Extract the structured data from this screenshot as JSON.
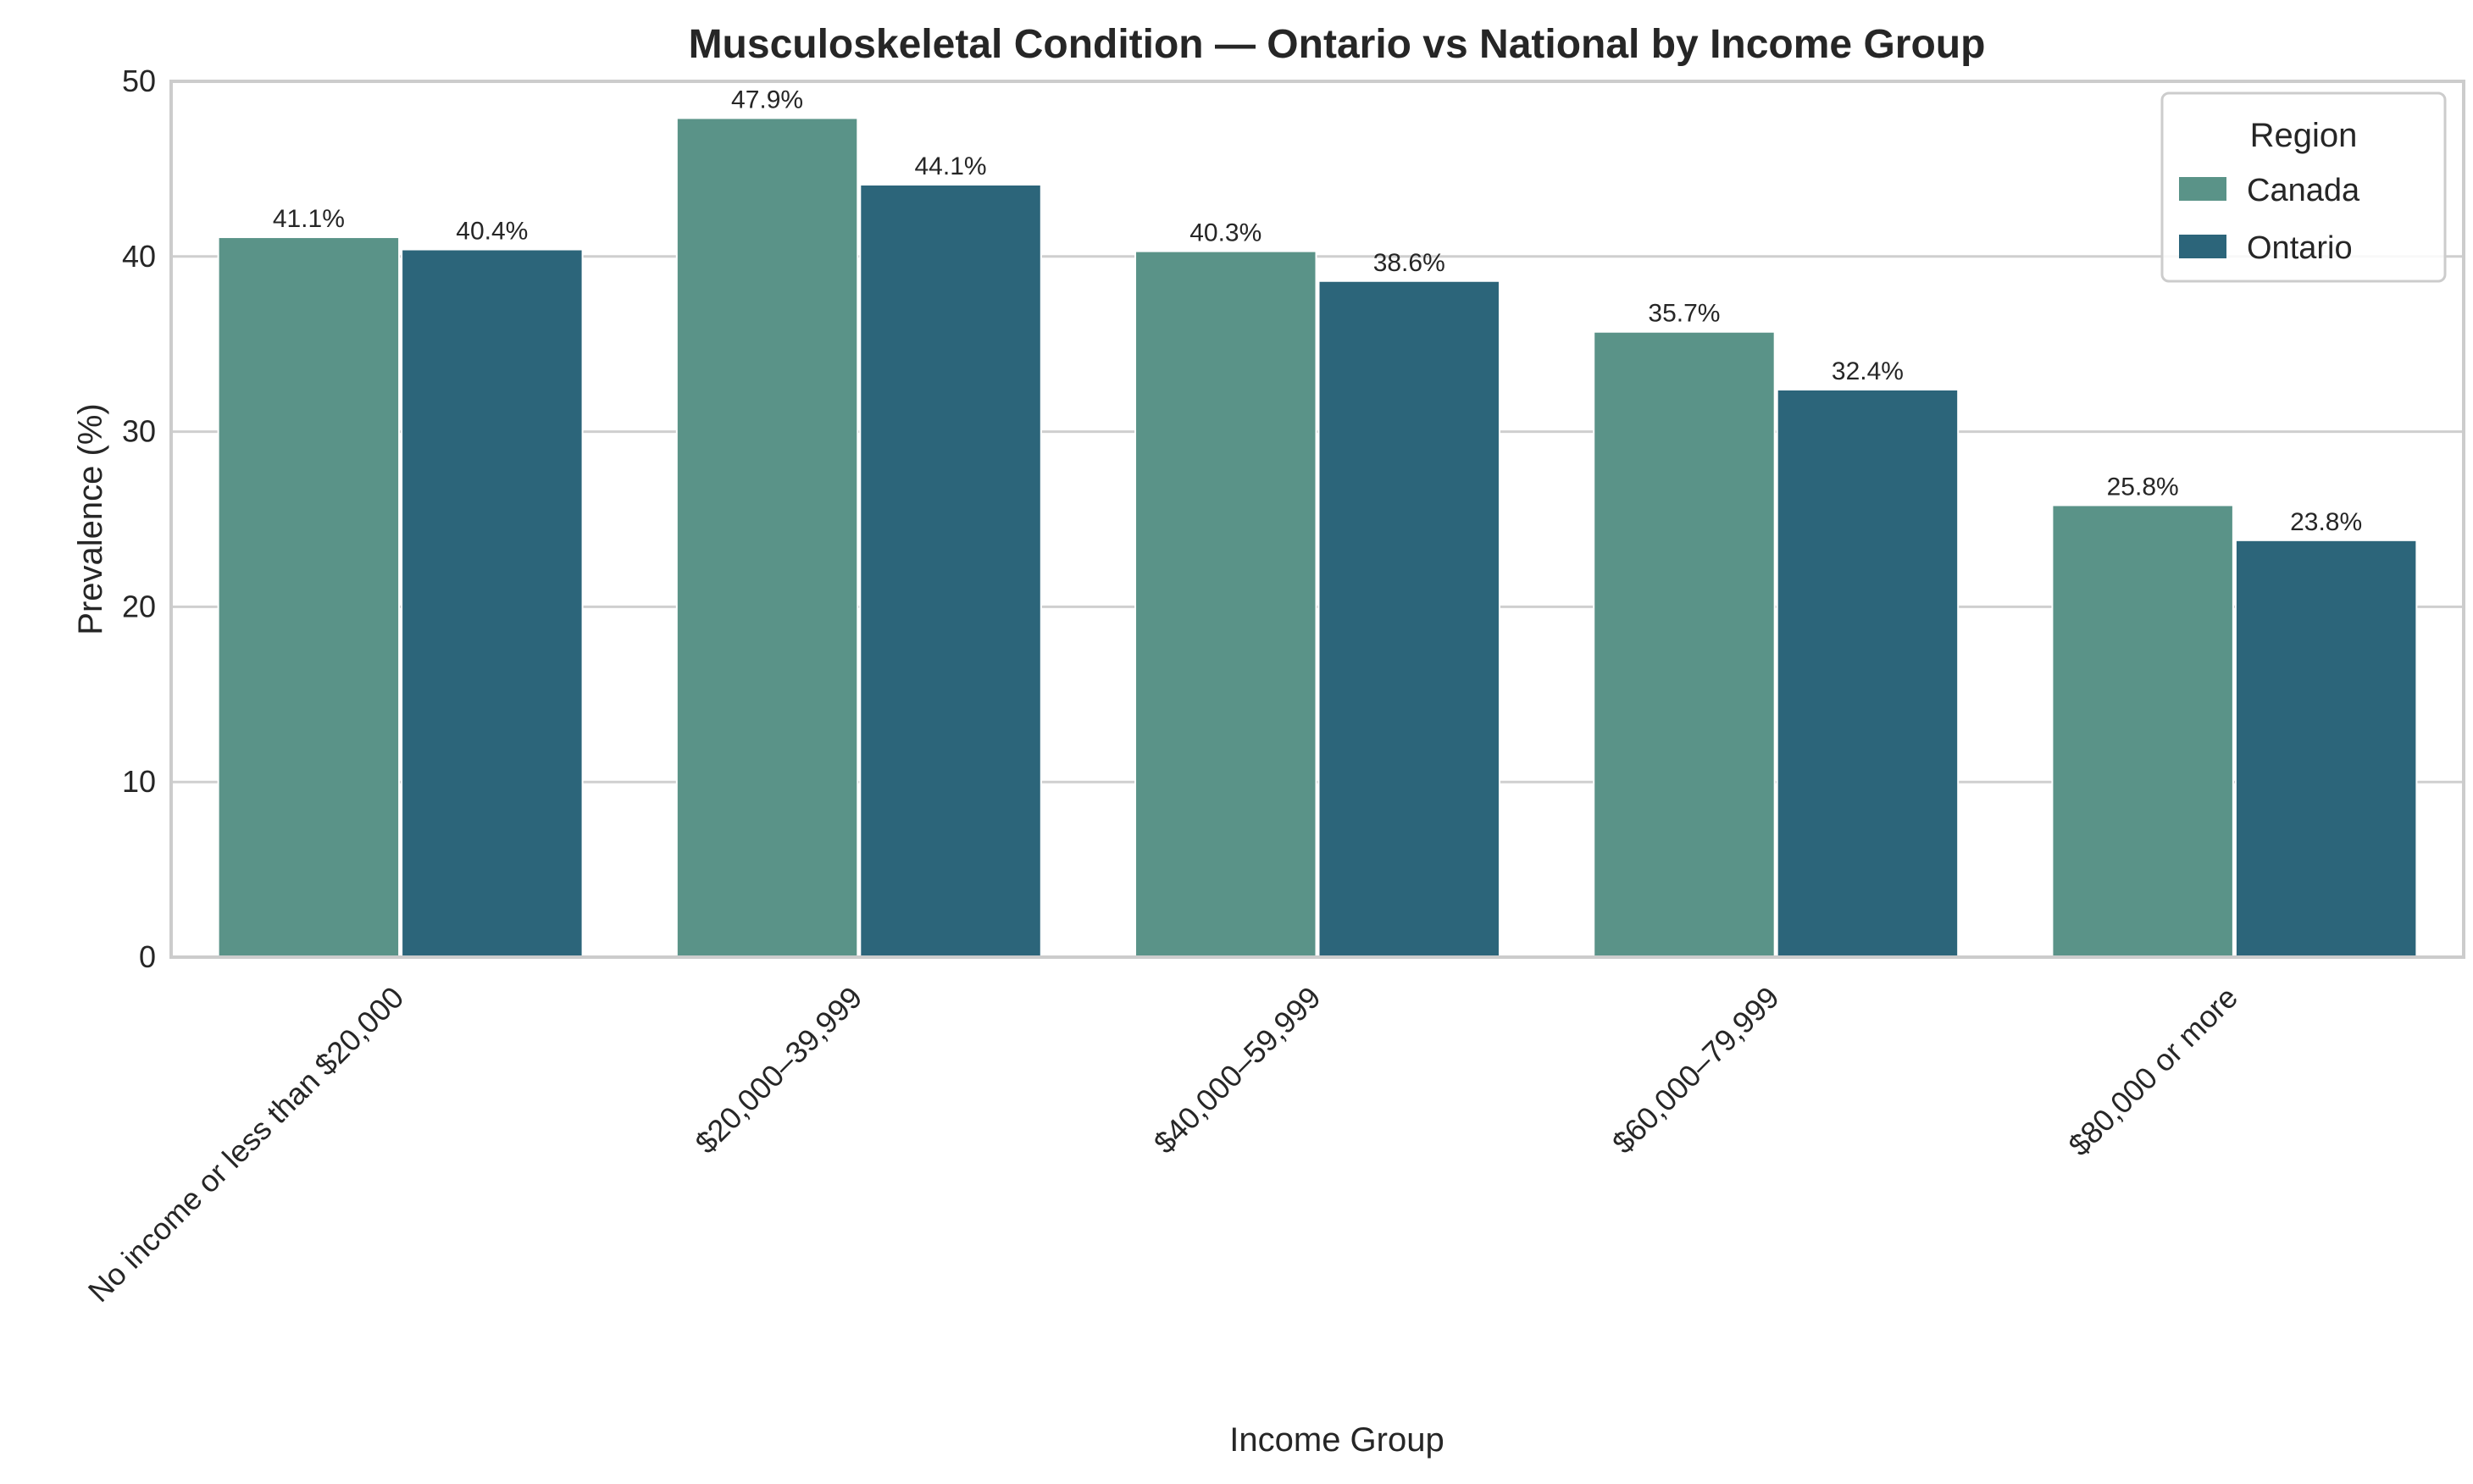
{
  "chart_data": {
    "type": "bar",
    "title": "Musculoskeletal Condition — Ontario vs National by Income Group",
    "xlabel": "Income Group",
    "ylabel": "Prevalence (%)",
    "ylim": [
      0,
      50
    ],
    "yticks": [
      0,
      10,
      20,
      30,
      40,
      50
    ],
    "grid": "horizontal",
    "categories": [
      "No income or less than $20,000",
      "$20,000–39,999",
      "$40,000–59,999",
      "$60,000–79,999",
      "$80,000 or more"
    ],
    "series": [
      {
        "name": "Canada",
        "color": "#5a9388",
        "values": [
          41.1,
          47.9,
          40.3,
          35.7,
          25.8
        ],
        "labels": [
          "41.1%",
          "47.9%",
          "40.3%",
          "35.7%",
          "25.8%"
        ]
      },
      {
        "name": "Ontario",
        "color": "#2c657a",
        "values": [
          40.4,
          44.1,
          38.6,
          32.4,
          23.8
        ],
        "labels": [
          "40.4%",
          "44.1%",
          "38.6%",
          "32.4%",
          "23.8%"
        ]
      }
    ],
    "legend": {
      "title": "Region",
      "position": "top-right"
    }
  }
}
